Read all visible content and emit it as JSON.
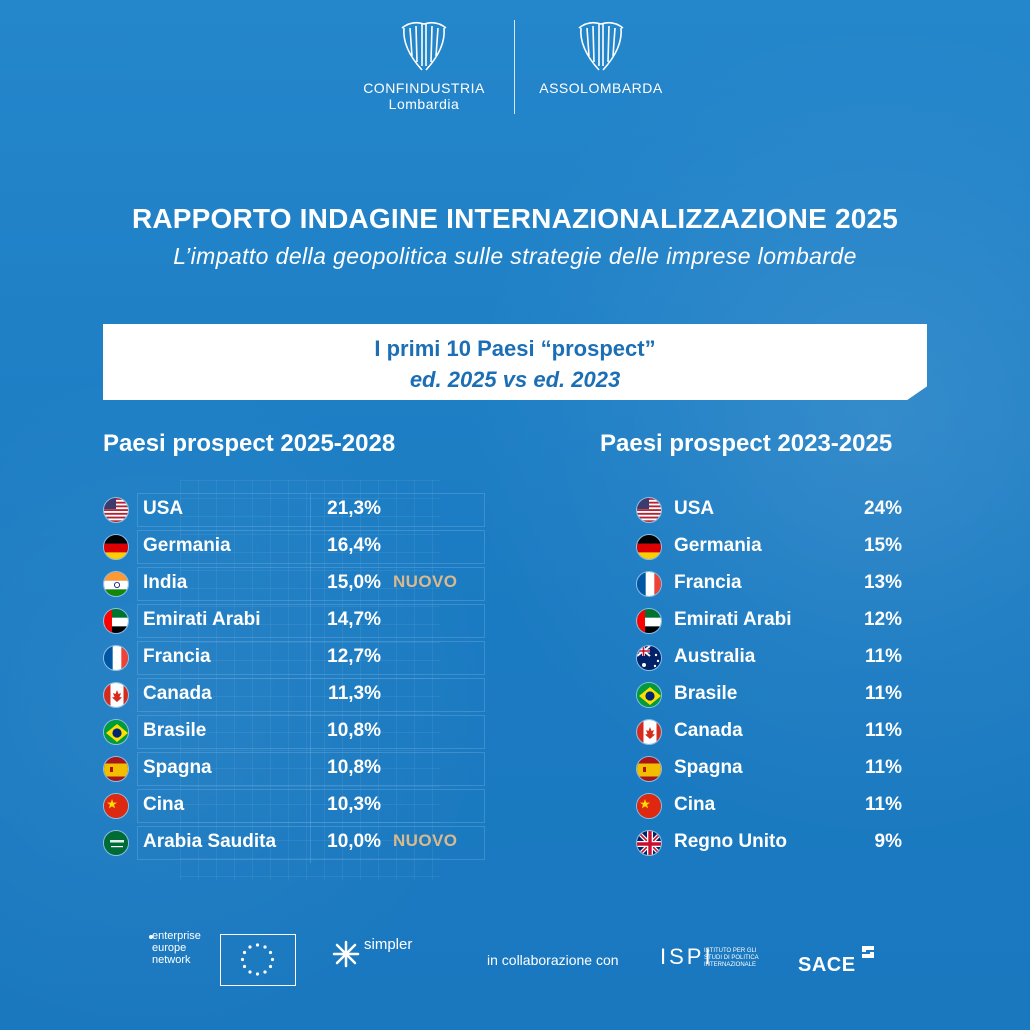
{
  "header": {
    "logo_left_name": "CONFINDUSTRIA",
    "logo_left_sub": "Lombardia",
    "logo_right_name": "ASSOLOMBARDA"
  },
  "title": "RAPPORTO INDAGINE INTERNAZIONALIZZAZIONE 2025",
  "subtitle": "L’impatto della geopolitica sulle strategie delle imprese lombarde",
  "box": {
    "line1": "I primi 10 Paesi “prospect”",
    "line2": "ed. 2025 vs ed. 2023"
  },
  "left": {
    "title": "Paesi prospect 2025-2028",
    "rows": [
      {
        "country": "USA",
        "value": "21,3%",
        "tag": "",
        "flag": "usa-flag-icon"
      },
      {
        "country": "Germania",
        "value": "16,4%",
        "tag": "",
        "flag": "germany-flag-icon"
      },
      {
        "country": "India",
        "value": "15,0%",
        "tag": "NUOVO",
        "flag": "india-flag-icon"
      },
      {
        "country": "Emirati Arabi",
        "value": "14,7%",
        "tag": "",
        "flag": "uae-flag-icon"
      },
      {
        "country": "Francia",
        "value": "12,7%",
        "tag": "",
        "flag": "france-flag-icon"
      },
      {
        "country": "Canada",
        "value": "11,3%",
        "tag": "",
        "flag": "canada-flag-icon"
      },
      {
        "country": "Brasile",
        "value": "10,8%",
        "tag": "",
        "flag": "brazil-flag-icon"
      },
      {
        "country": "Spagna",
        "value": "10,8%",
        "tag": "",
        "flag": "spain-flag-icon"
      },
      {
        "country": "Cina",
        "value": "10,3%",
        "tag": "",
        "flag": "china-flag-icon"
      },
      {
        "country": "Arabia Saudita",
        "value": "10,0%",
        "tag": "NUOVO",
        "flag": "saudi-flag-icon"
      }
    ]
  },
  "right": {
    "title": "Paesi prospect 2023-2025",
    "rows": [
      {
        "country": "USA",
        "value": "24%",
        "flag": "usa-flag-icon"
      },
      {
        "country": "Germania",
        "value": "15%",
        "flag": "germany-flag-icon"
      },
      {
        "country": "Francia",
        "value": "13%",
        "flag": "france-flag-icon"
      },
      {
        "country": "Emirati Arabi",
        "value": "12%",
        "flag": "uae-flag-icon"
      },
      {
        "country": "Australia",
        "value": "11%",
        "flag": "australia-flag-icon"
      },
      {
        "country": "Brasile",
        "value": "11%",
        "flag": "brazil-flag-icon"
      },
      {
        "country": "Canada",
        "value": "11%",
        "flag": "canada-flag-icon"
      },
      {
        "country": "Spagna",
        "value": "11%",
        "flag": "spain-flag-icon"
      },
      {
        "country": "Cina",
        "value": "11%",
        "flag": "china-flag-icon"
      },
      {
        "country": "Regno Unito",
        "value": "9%",
        "flag": "uk-flag-icon"
      }
    ]
  },
  "footer": {
    "een_text": "enterprise europe network",
    "simpler": "simpler",
    "collab": "in collaborazione con",
    "ispi": "ISPI",
    "ispi_sub": "ISTITUTO PER GLI STUDI DI POLITICA INTERNAZIONALE",
    "sace": "SACE"
  },
  "colors": {
    "background": "#1e7fc6",
    "box_text": "#1c6fb5",
    "nuovo": "#d9b98e"
  }
}
